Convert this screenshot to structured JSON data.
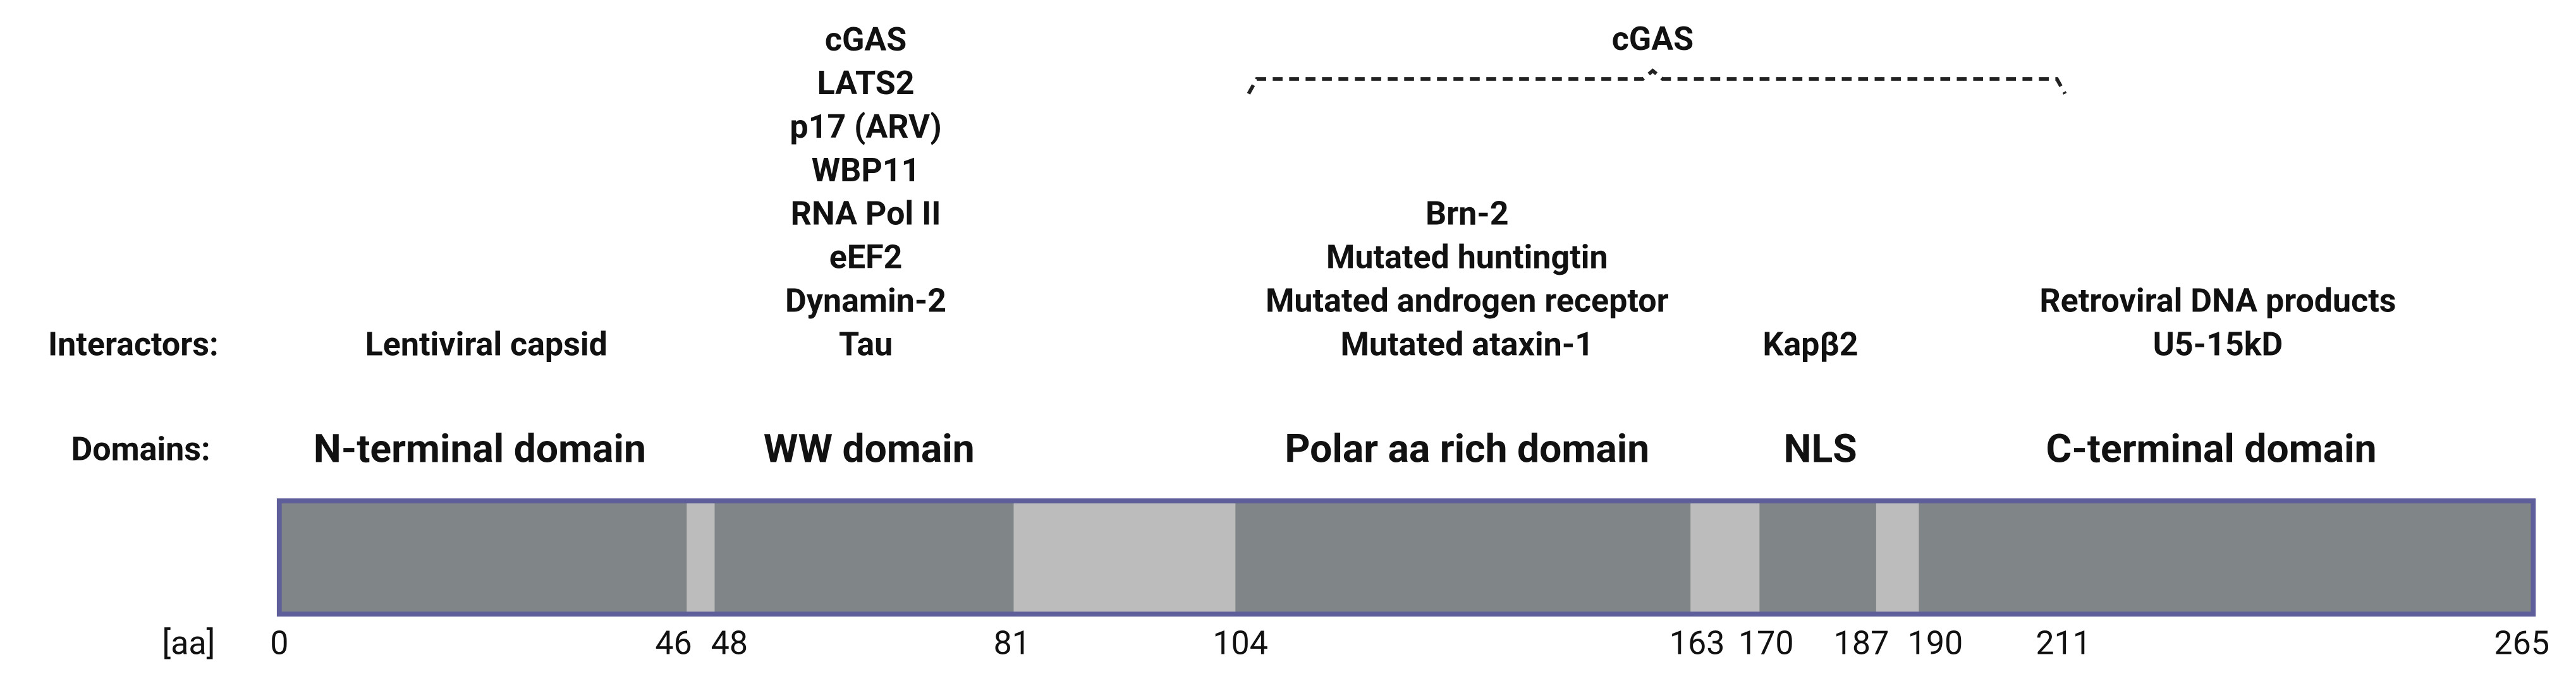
{
  "labels": {
    "interactors": "Interactors:",
    "domains": "Domains:",
    "aa": "[aa]"
  },
  "brace_label": "cGAS",
  "interactor_groups": [
    {
      "lines": [
        "Lentiviral capsid"
      ]
    },
    {
      "lines": [
        "cGAS",
        "LATS2",
        "p17 (ARV)",
        "WBP11",
        "RNA Pol II",
        "eEF2",
        "Dynamin-2",
        "Tau"
      ]
    },
    {
      "lines": [
        "Brn-2",
        "Mutated huntingtin",
        "Mutated androgen receptor",
        "Mutated ataxin-1"
      ]
    },
    {
      "lines": [
        "Kapβ2"
      ]
    },
    {
      "lines": [
        "Retroviral DNA products",
        "U5-15kD"
      ]
    }
  ],
  "domains": [
    "N-terminal domain",
    "WW domain",
    "Polar aa rich domain",
    "NLS",
    "C-terminal domain"
  ],
  "positions": [
    0,
    46,
    48,
    81,
    104,
    163,
    170,
    187,
    190,
    211,
    265
  ]
}
